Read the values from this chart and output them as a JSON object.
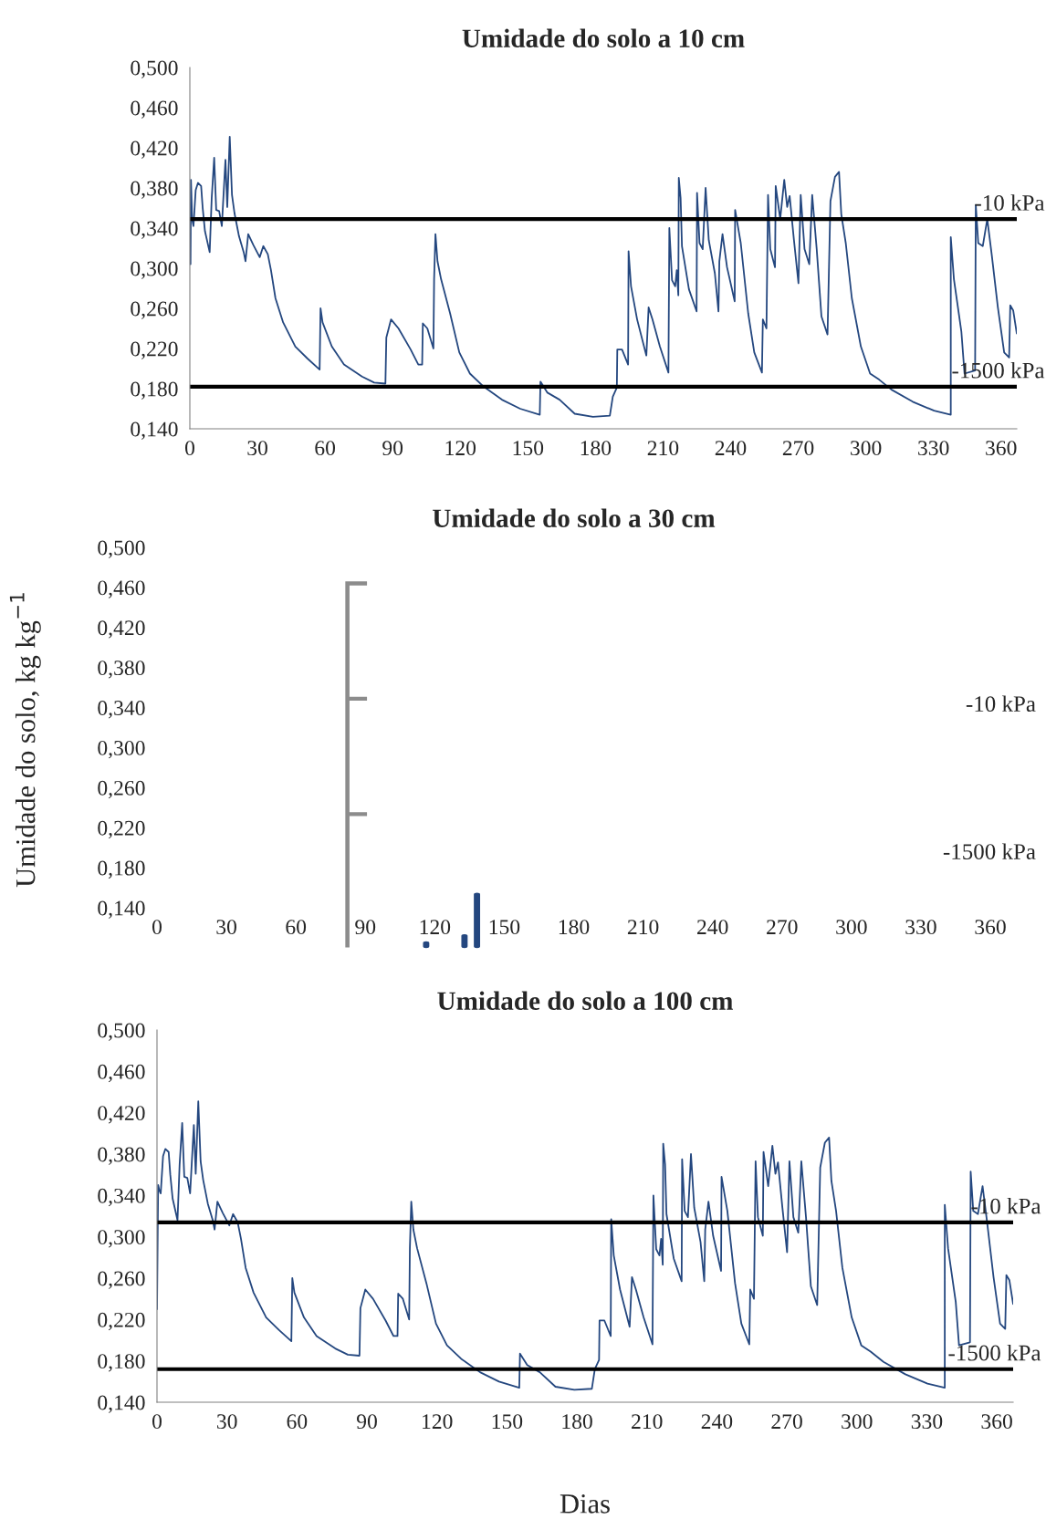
{
  "chart_data": [
    {
      "type": "line",
      "title": "Umidade do solo a 10 cm",
      "xlim": [
        0,
        367
      ],
      "xticks": [
        0,
        30,
        60,
        90,
        120,
        150,
        180,
        210,
        240,
        270,
        300,
        330,
        360
      ],
      "ylim": [
        0.14,
        0.5
      ],
      "yticks": [
        {
          "value": 0.14,
          "label": "0,140"
        },
        {
          "value": 0.18,
          "label": "0,180"
        },
        {
          "value": 0.22,
          "label": "0,220"
        },
        {
          "value": 0.26,
          "label": "0,260"
        },
        {
          "value": 0.3,
          "label": "0,300"
        },
        {
          "value": 0.34,
          "label": "0,340"
        },
        {
          "value": 0.38,
          "label": "0,380"
        },
        {
          "value": 0.42,
          "label": "0,420"
        },
        {
          "value": 0.46,
          "label": "0,460"
        },
        {
          "value": 0.5,
          "label": "0,500"
        }
      ],
      "line_style": "solid",
      "marker": "none",
      "series": [
        {
          "color": "#24477f",
          "x": [
            0.3,
            0.5,
            1,
            1.6,
            2.6,
            3.6,
            5,
            5.7,
            6.7,
            8.8,
            9.7,
            10.8,
            11.7,
            13,
            14.2,
            14.8,
            15.8,
            16.6,
            17.7,
            18.7,
            19.8,
            21.8,
            23.9,
            24.7,
            25.9,
            28.2,
            31,
            32.6,
            34.6,
            36,
            38,
            41.4,
            46.8,
            52.2,
            57.6,
            58,
            58.9,
            63,
            68.4,
            76.4,
            81.8,
            86.8,
            87.2,
            89.3,
            92.6,
            98,
            101.4,
            103.1,
            103.4,
            105.4,
            108.1,
            108.4,
            109,
            109.9,
            111.5,
            115.5,
            119.6,
            124.3,
            130.4,
            138.5,
            146.6,
            155.3,
            155.6,
            158.7,
            164.1,
            170.8,
            178.9,
            186.4,
            187.7,
            189.5,
            189.7,
            191.8,
            194.5,
            194.7,
            195.8,
            198.5,
            202.6,
            203.6,
            205.3,
            208.6,
            212.4,
            212.8,
            214,
            215.4,
            216.1,
            216.8,
            217,
            217.8,
            218.4,
            221.5,
            224.9,
            225.1,
            226.2,
            227.6,
            228.9,
            230.3,
            233,
            234.6,
            235,
            236.4,
            238.4,
            241.8,
            242,
            244.5,
            247.8,
            250.5,
            253.9,
            254.3,
            255.9,
            256.6,
            257.6,
            259.7,
            260,
            262,
            263.8,
            265.1,
            266.2,
            268.1,
            270.1,
            271.1,
            272.8,
            274.9,
            276.2,
            278.2,
            280.3,
            283,
            283.6,
            284.3,
            286.3,
            288.1,
            289.1,
            291.1,
            293.8,
            297.8,
            301.9,
            305.9,
            311.4,
            320.8,
            330.3,
            337.7,
            337.7,
            339.1,
            342.4,
            343.8,
            348.5,
            348.8,
            349.9,
            351.9,
            353.9,
            355.9,
            358.6,
            361.4,
            363.6,
            364.1,
            365.4,
            367
          ],
          "values": [
            0.304,
            0.388,
            0.349,
            0.342,
            0.378,
            0.385,
            0.382,
            0.36,
            0.337,
            0.316,
            0.37,
            0.41,
            0.358,
            0.357,
            0.342,
            0.367,
            0.408,
            0.361,
            0.431,
            0.373,
            0.355,
            0.332,
            0.316,
            0.307,
            0.334,
            0.323,
            0.311,
            0.322,
            0.314,
            0.298,
            0.27,
            0.246,
            0.222,
            0.21,
            0.199,
            0.26,
            0.246,
            0.222,
            0.204,
            0.192,
            0.186,
            0.185,
            0.231,
            0.249,
            0.24,
            0.219,
            0.204,
            0.204,
            0.245,
            0.24,
            0.22,
            0.289,
            0.334,
            0.307,
            0.289,
            0.255,
            0.216,
            0.195,
            0.182,
            0.169,
            0.16,
            0.154,
            0.187,
            0.176,
            0.169,
            0.155,
            0.152,
            0.153,
            0.172,
            0.181,
            0.219,
            0.219,
            0.204,
            0.317,
            0.282,
            0.249,
            0.213,
            0.261,
            0.249,
            0.222,
            0.196,
            0.34,
            0.288,
            0.282,
            0.298,
            0.273,
            0.39,
            0.37,
            0.322,
            0.279,
            0.257,
            0.375,
            0.325,
            0.319,
            0.38,
            0.328,
            0.295,
            0.257,
            0.307,
            0.334,
            0.301,
            0.267,
            0.358,
            0.325,
            0.255,
            0.216,
            0.196,
            0.249,
            0.24,
            0.373,
            0.319,
            0.301,
            0.382,
            0.349,
            0.388,
            0.361,
            0.372,
            0.328,
            0.285,
            0.373,
            0.319,
            0.304,
            0.373,
            0.319,
            0.252,
            0.234,
            0.295,
            0.367,
            0.391,
            0.396,
            0.354,
            0.325,
            0.27,
            0.222,
            0.195,
            0.189,
            0.179,
            0.167,
            0.158,
            0.154,
            0.331,
            0.289,
            0.237,
            0.195,
            0.198,
            0.363,
            0.325,
            0.322,
            0.349,
            0.313,
            0.261,
            0.216,
            0.211,
            0.263,
            0.258,
            0.235
          ]
        }
      ],
      "ref_lines": [
        {
          "axis": "y",
          "value": 0.349,
          "label": "-10 kPa",
          "color": "#000000"
        },
        {
          "axis": "y",
          "value": 0.182,
          "label": "-1500 kPa",
          "color": "#000000"
        }
      ]
    },
    {
      "type": "line",
      "title": "Umidade do solo a 30 cm",
      "ylabel": "Umidade do solo, kg kg$^{−1}$",
      "xlim": [
        0,
        360
      ],
      "xticks": [
        0,
        30,
        60,
        90,
        120,
        150,
        180,
        210,
        240,
        270,
        300,
        330,
        360
      ],
      "ylim": [
        0.14,
        0.5
      ],
      "yticks": [
        {
          "value": 0.14,
          "label": "0,140"
        },
        {
          "value": 0.18,
          "label": "0,180"
        },
        {
          "value": 0.22,
          "label": "0,220"
        },
        {
          "value": 0.26,
          "label": "0,260"
        },
        {
          "value": 0.3,
          "label": "0,300"
        },
        {
          "value": 0.34,
          "label": "0,340"
        },
        {
          "value": 0.38,
          "label": "0,380"
        },
        {
          "value": 0.42,
          "label": "0,420"
        },
        {
          "value": 0.46,
          "label": "0,460"
        },
        {
          "value": 0.5,
          "label": "0,500"
        }
      ],
      "annotations": [
        "-10 kPa",
        "-1500 kPa"
      ]
    },
    {
      "type": "line",
      "title": "Umidade do solo a 100 cm",
      "xlabel": "Dias",
      "xlim": [
        0,
        367
      ],
      "xticks": [
        0,
        30,
        60,
        90,
        120,
        150,
        180,
        210,
        240,
        270,
        300,
        330,
        360
      ],
      "ylim": [
        0.14,
        0.5
      ],
      "yticks": [
        {
          "value": 0.14,
          "label": "0,140"
        },
        {
          "value": 0.18,
          "label": "0,180"
        },
        {
          "value": 0.22,
          "label": "0,220"
        },
        {
          "value": 0.26,
          "label": "0,260"
        },
        {
          "value": 0.3,
          "label": "0,300"
        },
        {
          "value": 0.34,
          "label": "0,340"
        },
        {
          "value": 0.38,
          "label": "0,380"
        },
        {
          "value": 0.42,
          "label": "0,420"
        },
        {
          "value": 0.46,
          "label": "0,460"
        },
        {
          "value": 0.5,
          "label": "0,500"
        }
      ],
      "line_style": "solid",
      "marker": "none",
      "series": [
        {
          "color": "#24477f",
          "x": [
            0,
            0.5,
            1,
            1.6,
            2.6,
            3.6,
            5,
            5.7,
            6.7,
            8.8,
            9.7,
            10.8,
            11.7,
            13,
            14.2,
            14.8,
            15.8,
            16.6,
            17.7,
            18.7,
            19.8,
            21.8,
            23.9,
            24.7,
            25.9,
            28.2,
            31,
            32.6,
            34.6,
            36,
            38,
            41.4,
            46.8,
            52.2,
            57.6,
            58,
            58.9,
            63,
            68.4,
            76.4,
            81.8,
            86.8,
            87.2,
            89.3,
            92.6,
            98,
            101.4,
            103.1,
            103.4,
            105.4,
            108.1,
            108.4,
            109,
            109.9,
            111.5,
            115.5,
            119.6,
            124.3,
            130.4,
            138.5,
            146.6,
            155.3,
            155.6,
            158.7,
            164.1,
            170.8,
            178.9,
            186.4,
            187.7,
            189.5,
            189.7,
            191.8,
            194.5,
            194.7,
            195.8,
            198.5,
            202.6,
            203.6,
            205.3,
            208.6,
            212.4,
            212.8,
            214,
            215.4,
            216.1,
            216.8,
            217,
            217.8,
            218.4,
            221.5,
            224.9,
            225.1,
            226.2,
            227.6,
            228.9,
            230.3,
            233,
            234.6,
            235,
            236.4,
            238.4,
            241.8,
            242,
            244.5,
            247.8,
            250.5,
            253.9,
            254.3,
            255.9,
            256.6,
            257.6,
            259.7,
            260,
            262,
            263.8,
            265.1,
            266.2,
            268.1,
            270.1,
            271.1,
            272.8,
            274.9,
            276.2,
            278.2,
            280.3,
            283,
            283.6,
            284.3,
            286.3,
            288.1,
            289.1,
            291.1,
            293.8,
            297.8,
            301.9,
            305.9,
            311.4,
            320.8,
            330.3,
            337.7,
            337.7,
            339.1,
            342.4,
            343.8,
            348.5,
            348.8,
            349.9,
            351.9,
            353.9,
            355.9,
            358.6,
            361.4,
            363.6,
            364.1,
            365.4,
            367
          ],
          "values": [
            0.23,
            0.35,
            0.345,
            0.342,
            0.378,
            0.385,
            0.382,
            0.36,
            0.337,
            0.316,
            0.37,
            0.41,
            0.358,
            0.357,
            0.342,
            0.367,
            0.408,
            0.361,
            0.431,
            0.373,
            0.355,
            0.332,
            0.316,
            0.307,
            0.334,
            0.323,
            0.311,
            0.322,
            0.314,
            0.298,
            0.27,
            0.246,
            0.222,
            0.21,
            0.199,
            0.26,
            0.246,
            0.222,
            0.204,
            0.192,
            0.186,
            0.185,
            0.231,
            0.249,
            0.24,
            0.219,
            0.204,
            0.204,
            0.245,
            0.24,
            0.22,
            0.289,
            0.334,
            0.307,
            0.289,
            0.255,
            0.216,
            0.195,
            0.182,
            0.169,
            0.16,
            0.154,
            0.187,
            0.176,
            0.169,
            0.155,
            0.152,
            0.153,
            0.172,
            0.181,
            0.219,
            0.219,
            0.204,
            0.317,
            0.282,
            0.249,
            0.213,
            0.261,
            0.249,
            0.222,
            0.196,
            0.34,
            0.288,
            0.282,
            0.298,
            0.273,
            0.39,
            0.37,
            0.322,
            0.279,
            0.257,
            0.375,
            0.325,
            0.319,
            0.38,
            0.328,
            0.295,
            0.257,
            0.307,
            0.334,
            0.301,
            0.267,
            0.358,
            0.325,
            0.255,
            0.216,
            0.196,
            0.249,
            0.24,
            0.373,
            0.319,
            0.301,
            0.382,
            0.349,
            0.388,
            0.361,
            0.372,
            0.328,
            0.285,
            0.373,
            0.319,
            0.304,
            0.373,
            0.319,
            0.252,
            0.234,
            0.295,
            0.367,
            0.391,
            0.396,
            0.354,
            0.325,
            0.27,
            0.222,
            0.195,
            0.189,
            0.179,
            0.167,
            0.158,
            0.154,
            0.331,
            0.289,
            0.237,
            0.195,
            0.198,
            0.363,
            0.325,
            0.322,
            0.349,
            0.313,
            0.261,
            0.216,
            0.211,
            0.263,
            0.258,
            0.235
          ]
        }
      ],
      "ref_lines": [
        {
          "axis": "y",
          "value": 0.314,
          "label": "-10 kPa",
          "color": "#000000"
        },
        {
          "axis": "y",
          "value": 0.172,
          "label": "-1500 kPa",
          "color": "#000000"
        }
      ]
    }
  ]
}
